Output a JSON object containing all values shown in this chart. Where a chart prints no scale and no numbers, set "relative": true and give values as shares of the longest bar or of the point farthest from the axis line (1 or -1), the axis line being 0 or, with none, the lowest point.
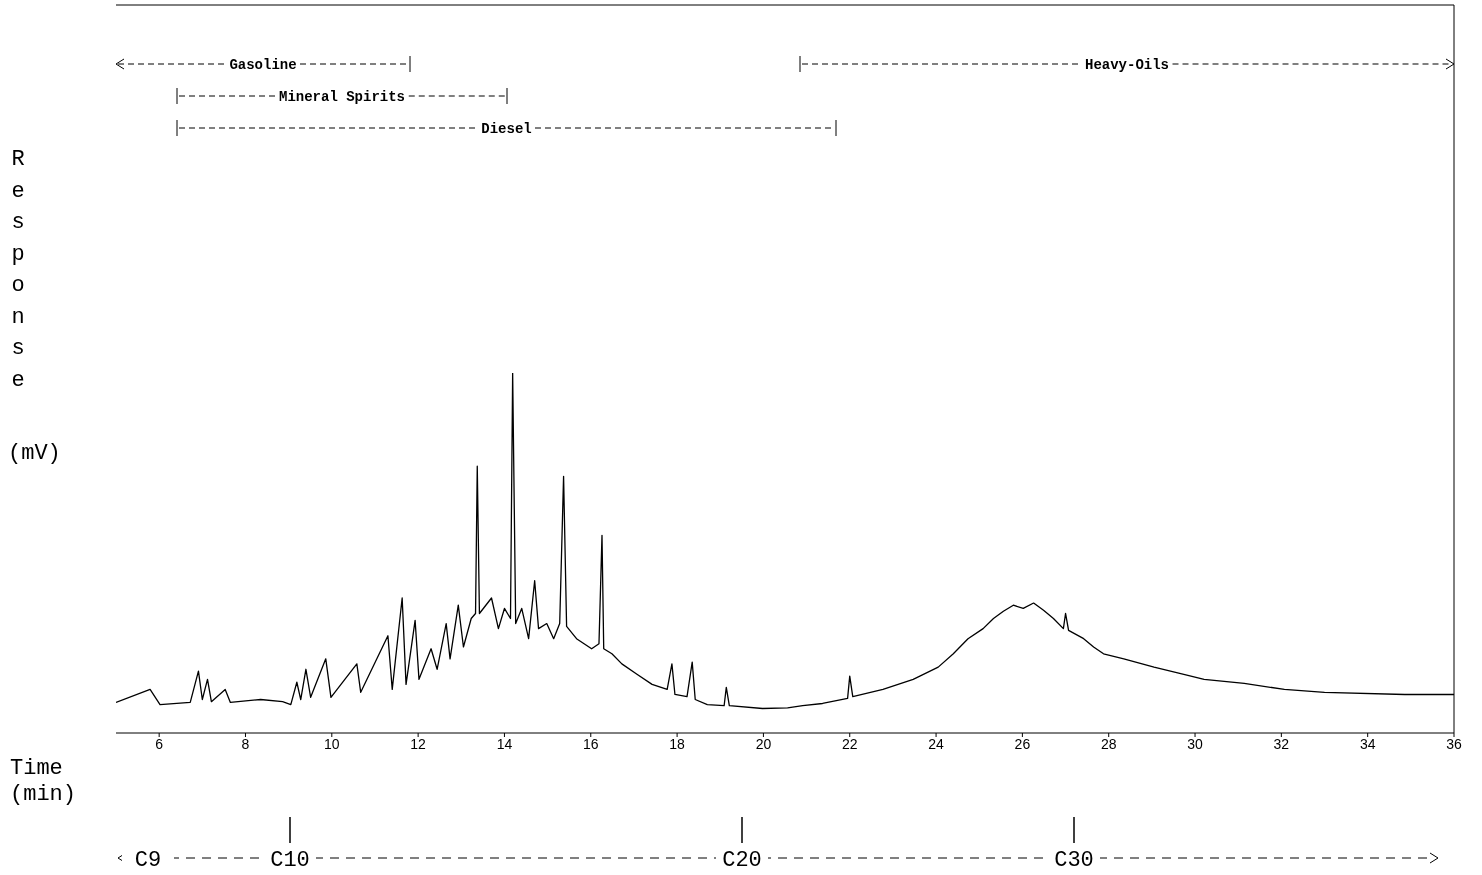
{
  "chart_data": {
    "type": "line",
    "relative": true,
    "xlabel": "Time (min)",
    "ylabel": "Response (mV)",
    "color": "#000000",
    "marker": "none",
    "line_style": "solid",
    "xlim": [
      5,
      36
    ],
    "xticks": [
      6,
      8,
      10,
      12,
      14,
      16,
      18,
      20,
      22,
      24,
      26,
      28,
      30,
      32,
      34,
      36
    ],
    "annotations": [
      "Gasoline",
      "Mineral Spirits",
      "Diesel",
      "Heavy-Oils",
      "C9",
      "C10",
      "C20",
      "C30"
    ],
    "x": [
      5.0,
      5.79,
      6.02,
      6.72,
      6.91,
      7.0,
      7.12,
      7.21,
      7.53,
      7.65,
      8.35,
      8.86,
      9.05,
      9.19,
      9.28,
      9.4,
      9.51,
      9.86,
      9.98,
      10.58,
      10.67,
      11.3,
      11.4,
      11.63,
      11.72,
      11.93,
      12.02,
      12.3,
      12.44,
      12.65,
      12.74,
      12.93,
      13.05,
      13.23,
      13.33,
      13.37,
      13.42,
      13.7,
      13.86,
      14.0,
      14.14,
      14.19,
      14.26,
      14.4,
      14.56,
      14.7,
      14.79,
      14.98,
      15.14,
      15.28,
      15.37,
      15.44,
      15.67,
      16.02,
      16.19,
      16.26,
      16.3,
      16.49,
      16.72,
      17.07,
      17.42,
      17.77,
      17.88,
      17.95,
      18.23,
      18.35,
      18.42,
      18.7,
      19.09,
      19.14,
      19.21,
      19.98,
      20.56,
      20.91,
      21.37,
      21.95,
      22.0,
      22.07,
      22.77,
      23.47,
      24.05,
      24.4,
      24.74,
      25.09,
      25.33,
      25.56,
      25.79,
      26.02,
      26.26,
      26.49,
      26.72,
      26.95,
      27.0,
      27.07,
      27.42,
      27.65,
      27.88,
      28.35,
      29.05,
      29.74,
      30.21,
      31.14,
      32.07,
      33.0,
      34.86,
      36.0
    ],
    "values": [
      0.085,
      0.121,
      0.079,
      0.085,
      0.172,
      0.093,
      0.149,
      0.087,
      0.121,
      0.085,
      0.093,
      0.087,
      0.079,
      0.141,
      0.093,
      0.177,
      0.099,
      0.206,
      0.099,
      0.192,
      0.113,
      0.27,
      0.121,
      0.375,
      0.135,
      0.313,
      0.149,
      0.234,
      0.177,
      0.304,
      0.206,
      0.355,
      0.239,
      0.318,
      0.332,
      0.741,
      0.332,
      0.375,
      0.29,
      0.346,
      0.318,
      1,
      0.304,
      0.346,
      0.262,
      0.423,
      0.29,
      0.304,
      0.262,
      0.304,
      0.713,
      0.296,
      0.262,
      0.234,
      0.248,
      0.549,
      0.234,
      0.22,
      0.192,
      0.163,
      0.135,
      0.121,
      0.192,
      0.107,
      0.101,
      0.197,
      0.093,
      0.079,
      0.076,
      0.127,
      0.076,
      0.068,
      0.07,
      0.076,
      0.082,
      0.096,
      0.158,
      0.101,
      0.121,
      0.149,
      0.183,
      0.22,
      0.262,
      0.29,
      0.318,
      0.338,
      0.355,
      0.346,
      0.361,
      0.341,
      0.318,
      0.29,
      0.332,
      0.285,
      0.262,
      0.239,
      0.22,
      0.206,
      0.183,
      0.163,
      0.149,
      0.138,
      0.121,
      0.113,
      0.107,
      0.107
    ]
  }
}
